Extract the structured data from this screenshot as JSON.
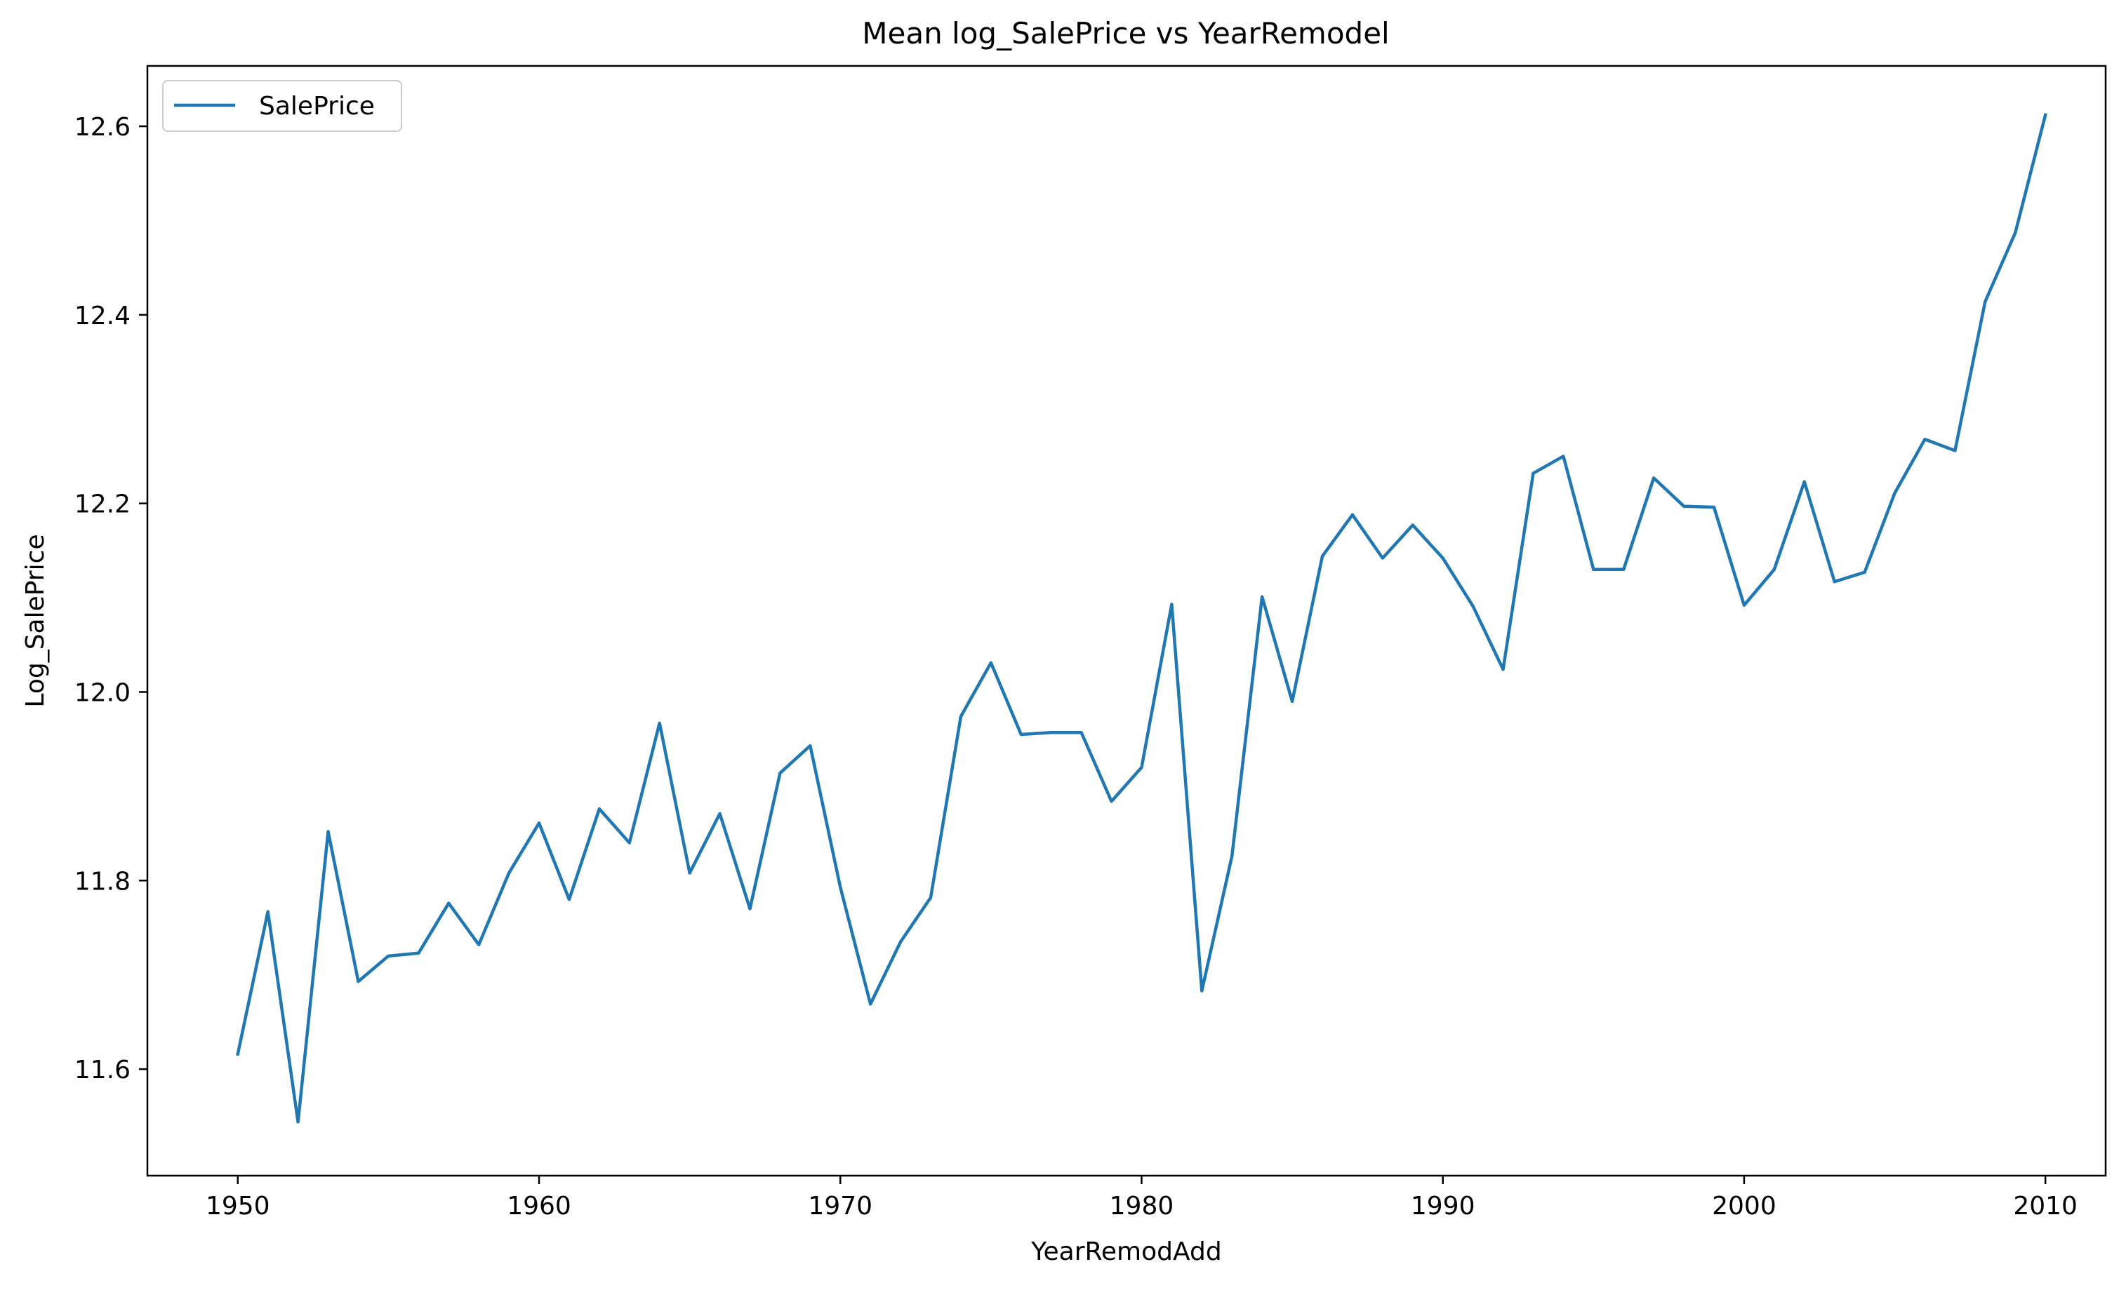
{
  "chart_data": {
    "type": "line",
    "title": "Mean log_SalePrice vs YearRemodel",
    "xlabel": "YearRemodAdd",
    "ylabel": "Log_SalePrice",
    "xlim": [
      1947,
      2012
    ],
    "ylim": [
      11.487,
      12.664
    ],
    "xticks": [
      1950,
      1960,
      1970,
      1980,
      1990,
      2000,
      2010
    ],
    "yticks": [
      11.6,
      11.8,
      12.0,
      12.2,
      12.4,
      12.6
    ],
    "ytick_labels": [
      "11.6",
      "11.8",
      "12.0",
      "12.2",
      "12.4",
      "12.6"
    ],
    "grid": false,
    "legend_position": "top-left",
    "series": [
      {
        "name": "SalePrice",
        "color": "#1f77b4",
        "x": [
          1950,
          1951,
          1952,
          1953,
          1954,
          1955,
          1956,
          1957,
          1958,
          1959,
          1960,
          1961,
          1962,
          1963,
          1964,
          1965,
          1966,
          1967,
          1968,
          1969,
          1970,
          1971,
          1972,
          1973,
          1974,
          1975,
          1976,
          1977,
          1978,
          1979,
          1980,
          1981,
          1982,
          1983,
          1984,
          1985,
          1986,
          1987,
          1988,
          1989,
          1990,
          1991,
          1992,
          1993,
          1994,
          1995,
          1996,
          1997,
          1998,
          1999,
          2000,
          2001,
          2002,
          2003,
          2004,
          2005,
          2006,
          2007,
          2008,
          2009,
          2010
        ],
        "y": [
          11.616,
          11.767,
          11.544,
          11.852,
          11.693,
          11.72,
          11.723,
          11.776,
          11.732,
          11.808,
          11.861,
          11.78,
          11.876,
          11.84,
          11.967,
          11.808,
          11.871,
          11.77,
          11.914,
          11.943,
          11.793,
          11.669,
          11.735,
          11.782,
          11.974,
          12.031,
          11.955,
          11.957,
          11.957,
          11.884,
          11.92,
          12.093,
          11.683,
          11.826,
          12.101,
          11.99,
          12.144,
          12.188,
          12.142,
          12.177,
          12.142,
          12.091,
          12.024,
          12.232,
          12.25,
          12.13,
          12.13,
          12.227,
          12.197,
          12.196,
          12.092,
          12.13,
          12.223,
          12.117,
          12.127,
          12.211,
          12.268,
          12.256,
          12.414,
          12.487,
          12.612
        ]
      }
    ]
  }
}
